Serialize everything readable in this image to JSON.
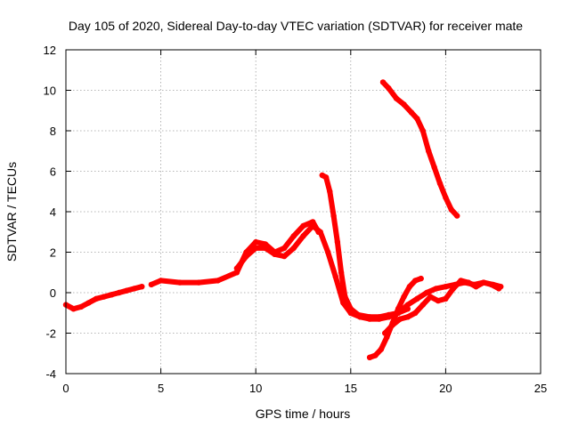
{
  "chart_data": {
    "type": "line",
    "title": "Day 105 of 2020, Sidereal Day-to-day VTEC variation (SDTVAR) for receiver mate",
    "xlabel": "GPS time / hours",
    "ylabel": "SDTVAR / TECUs",
    "xlim": [
      0,
      25
    ],
    "ylim": [
      -4,
      12
    ],
    "x_ticks": [
      "0",
      "5",
      "10",
      "15",
      "20",
      "25"
    ],
    "y_ticks": [
      "-4",
      "-2",
      "0",
      "2",
      "4",
      "6",
      "8",
      "10",
      "12"
    ],
    "grid": true,
    "legend": "none",
    "color": "#ff0000",
    "series": [
      {
        "x": [
          0.0,
          0.4,
          0.8,
          1.2,
          1.6,
          2.0,
          2.4,
          2.8,
          3.2,
          3.6,
          4.0
        ],
        "y": [
          -0.6,
          -0.8,
          -0.7,
          -0.5,
          -0.3,
          -0.2,
          -0.1,
          0.0,
          0.1,
          0.2,
          0.3
        ]
      },
      {
        "x": [
          4.5,
          5.0,
          6.0,
          7.0,
          8.0,
          9.0,
          9.5,
          10.0,
          10.5,
          11.0,
          11.5,
          12.0,
          12.5,
          13.0,
          13.3
        ],
        "y": [
          0.4,
          0.6,
          0.5,
          0.5,
          0.6,
          1.0,
          2.0,
          2.5,
          2.4,
          2.0,
          2.2,
          2.8,
          3.3,
          3.5,
          3.0
        ]
      },
      {
        "x": [
          9.0,
          9.5,
          10.0,
          10.5,
          11.0,
          11.5,
          12.0,
          12.5,
          13.0,
          13.4,
          13.8,
          14.2,
          14.6,
          15.0
        ],
        "y": [
          1.2,
          1.8,
          2.2,
          2.2,
          1.9,
          1.8,
          2.2,
          2.8,
          3.3,
          3.0,
          2.0,
          0.8,
          -0.5,
          -1.0
        ]
      },
      {
        "x": [
          13.5,
          13.7,
          13.9,
          14.1,
          14.3,
          14.5,
          14.7,
          15.0,
          15.4,
          16.0,
          16.5,
          17.0,
          17.5,
          18.0
        ],
        "y": [
          5.8,
          5.7,
          5.0,
          3.8,
          2.5,
          1.0,
          -0.2,
          -0.8,
          -1.1,
          -1.2,
          -1.2,
          -1.1,
          -1.0,
          -0.8
        ]
      },
      {
        "x": [
          15.0,
          15.5,
          16.0,
          16.5,
          17.0,
          17.5,
          18.0,
          18.5,
          19.0,
          19.5,
          20.0,
          20.5,
          21.0,
          21.5,
          22.0,
          22.5,
          22.9
        ],
        "y": [
          -1.0,
          -1.2,
          -1.3,
          -1.3,
          -1.2,
          -1.0,
          -0.6,
          -0.3,
          0.0,
          0.2,
          0.3,
          0.4,
          0.5,
          0.4,
          0.5,
          0.4,
          0.3
        ]
      },
      {
        "x": [
          16.0,
          16.3,
          16.6,
          16.9,
          17.2,
          17.5,
          17.8,
          18.1,
          18.4,
          18.7
        ],
        "y": [
          -3.2,
          -3.1,
          -2.8,
          -2.2,
          -1.5,
          -0.8,
          -0.2,
          0.3,
          0.6,
          0.7
        ]
      },
      {
        "x": [
          16.8,
          17.2,
          17.6,
          18.0,
          18.4,
          18.8,
          19.2,
          19.6,
          20.0,
          20.4,
          20.8,
          21.2,
          21.6,
          22.0,
          22.4,
          22.8
        ],
        "y": [
          -2.0,
          -1.6,
          -1.3,
          -1.2,
          -1.0,
          -0.6,
          -0.2,
          -0.4,
          -0.3,
          0.2,
          0.6,
          0.5,
          0.3,
          0.5,
          0.4,
          0.2
        ]
      },
      {
        "x": [
          16.7,
          17.0,
          17.4,
          17.8,
          18.2,
          18.5,
          18.8,
          19.1,
          19.4,
          19.7,
          20.0,
          20.3,
          20.6
        ],
        "y": [
          10.4,
          10.1,
          9.6,
          9.3,
          8.9,
          8.6,
          8.0,
          7.0,
          6.2,
          5.4,
          4.7,
          4.1,
          3.8
        ]
      }
    ]
  }
}
